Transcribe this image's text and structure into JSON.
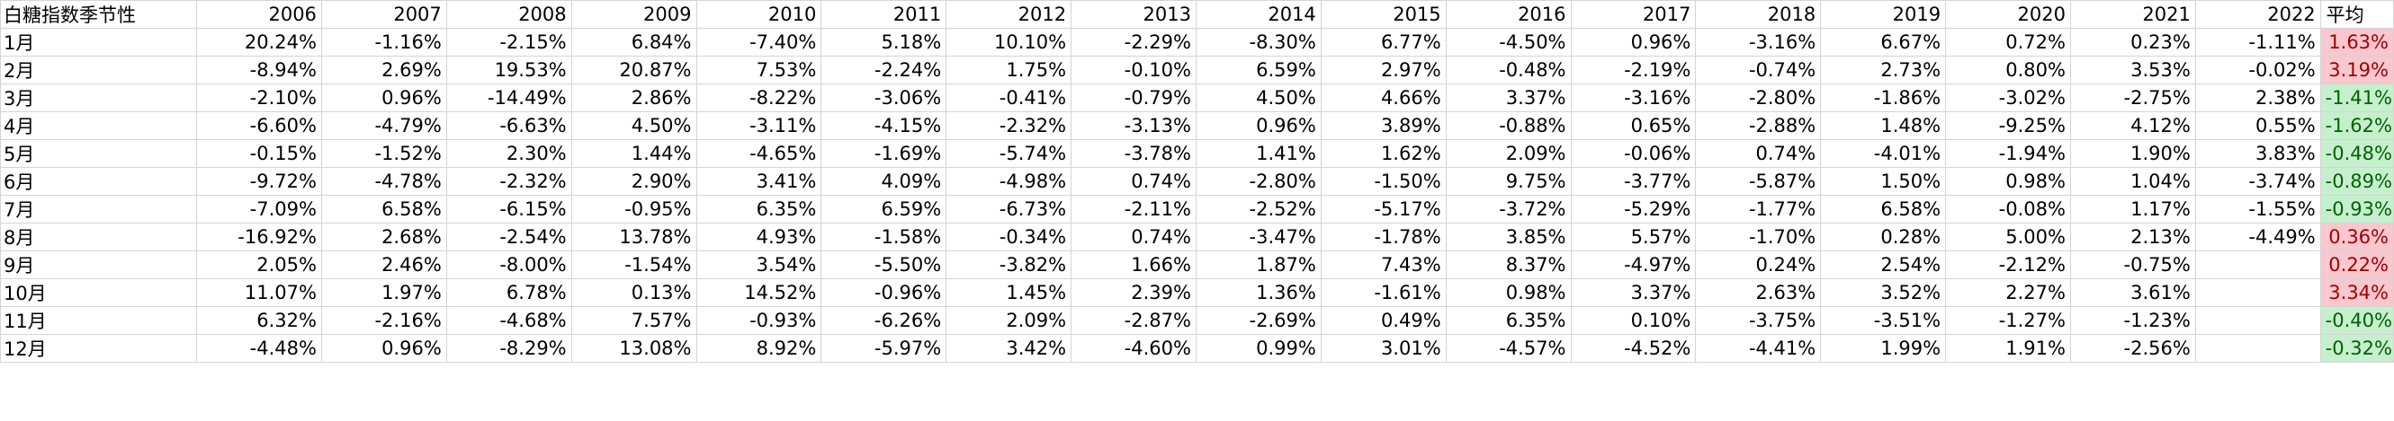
{
  "title": "白糖指数季节性",
  "average_label": "平均",
  "years": [
    "2006",
    "2007",
    "2008",
    "2009",
    "2010",
    "2011",
    "2012",
    "2013",
    "2014",
    "2015",
    "2016",
    "2017",
    "2018",
    "2019",
    "2020",
    "2021",
    "2022"
  ],
  "rows": [
    {
      "month": "1月",
      "values": [
        "20.24%",
        "-1.16%",
        "-2.15%",
        "6.84%",
        "-7.40%",
        "5.18%",
        "10.10%",
        "-2.29%",
        "-8.30%",
        "6.77%",
        "-4.50%",
        "0.96%",
        "-3.16%",
        "6.67%",
        "0.72%",
        "0.23%",
        "-1.11%"
      ],
      "avg": "1.63%",
      "avg_sign": "pos"
    },
    {
      "month": "2月",
      "values": [
        "-8.94%",
        "2.69%",
        "19.53%",
        "20.87%",
        "7.53%",
        "-2.24%",
        "1.75%",
        "-0.10%",
        "6.59%",
        "2.97%",
        "-0.48%",
        "-2.19%",
        "-0.74%",
        "2.73%",
        "0.80%",
        "3.53%",
        "-0.02%"
      ],
      "avg": "3.19%",
      "avg_sign": "pos"
    },
    {
      "month": "3月",
      "values": [
        "-2.10%",
        "0.96%",
        "-14.49%",
        "2.86%",
        "-8.22%",
        "-3.06%",
        "-0.41%",
        "-0.79%",
        "4.50%",
        "4.66%",
        "3.37%",
        "-3.16%",
        "-2.80%",
        "-1.86%",
        "-3.02%",
        "-2.75%",
        "2.38%"
      ],
      "avg": "-1.41%",
      "avg_sign": "neg"
    },
    {
      "month": "4月",
      "values": [
        "-6.60%",
        "-4.79%",
        "-6.63%",
        "4.50%",
        "-3.11%",
        "-4.15%",
        "-2.32%",
        "-3.13%",
        "0.96%",
        "3.89%",
        "-0.88%",
        "0.65%",
        "-2.88%",
        "1.48%",
        "-9.25%",
        "4.12%",
        "0.55%"
      ],
      "avg": "-1.62%",
      "avg_sign": "neg"
    },
    {
      "month": "5月",
      "values": [
        "-0.15%",
        "-1.52%",
        "2.30%",
        "1.44%",
        "-4.65%",
        "-1.69%",
        "-5.74%",
        "-3.78%",
        "1.41%",
        "1.62%",
        "2.09%",
        "-0.06%",
        "0.74%",
        "-4.01%",
        "-1.94%",
        "1.90%",
        "3.83%"
      ],
      "avg": "-0.48%",
      "avg_sign": "neg"
    },
    {
      "month": "6月",
      "values": [
        "-9.72%",
        "-4.78%",
        "-2.32%",
        "2.90%",
        "3.41%",
        "4.09%",
        "-4.98%",
        "0.74%",
        "-2.80%",
        "-1.50%",
        "9.75%",
        "-3.77%",
        "-5.87%",
        "1.50%",
        "0.98%",
        "1.04%",
        "-3.74%"
      ],
      "avg": "-0.89%",
      "avg_sign": "neg"
    },
    {
      "month": "7月",
      "values": [
        "-7.09%",
        "6.58%",
        "-6.15%",
        "-0.95%",
        "6.35%",
        "6.59%",
        "-6.73%",
        "-2.11%",
        "-2.52%",
        "-5.17%",
        "-3.72%",
        "-5.29%",
        "-1.77%",
        "6.58%",
        "-0.08%",
        "1.17%",
        "-1.55%"
      ],
      "avg": "-0.93%",
      "avg_sign": "neg"
    },
    {
      "month": "8月",
      "values": [
        "-16.92%",
        "2.68%",
        "-2.54%",
        "13.78%",
        "4.93%",
        "-1.58%",
        "-0.34%",
        "0.74%",
        "-3.47%",
        "-1.78%",
        "3.85%",
        "5.57%",
        "-1.70%",
        "0.28%",
        "5.00%",
        "2.13%",
        "-4.49%"
      ],
      "avg": "0.36%",
      "avg_sign": "pos"
    },
    {
      "month": "9月",
      "values": [
        "2.05%",
        "2.46%",
        "-8.00%",
        "-1.54%",
        "3.54%",
        "-5.50%",
        "-3.82%",
        "1.66%",
        "1.87%",
        "7.43%",
        "8.37%",
        "-4.97%",
        "0.24%",
        "2.54%",
        "-2.12%",
        "-0.75%",
        ""
      ],
      "avg": "0.22%",
      "avg_sign": "pos"
    },
    {
      "month": "10月",
      "values": [
        "11.07%",
        "1.97%",
        "6.78%",
        "0.13%",
        "14.52%",
        "-0.96%",
        "1.45%",
        "2.39%",
        "1.36%",
        "-1.61%",
        "0.98%",
        "3.37%",
        "2.63%",
        "3.52%",
        "2.27%",
        "3.61%",
        ""
      ],
      "avg": "3.34%",
      "avg_sign": "pos"
    },
    {
      "month": "11月",
      "values": [
        "6.32%",
        "-2.16%",
        "-4.68%",
        "7.57%",
        "-0.93%",
        "-6.26%",
        "2.09%",
        "-2.87%",
        "-2.69%",
        "0.49%",
        "6.35%",
        "0.10%",
        "-3.75%",
        "-3.51%",
        "-1.27%",
        "-1.23%",
        ""
      ],
      "avg": "-0.40%",
      "avg_sign": "neg"
    },
    {
      "month": "12月",
      "values": [
        "-4.48%",
        "0.96%",
        "-8.29%",
        "13.08%",
        "8.92%",
        "-5.97%",
        "3.42%",
        "-4.60%",
        "0.99%",
        "3.01%",
        "-4.57%",
        "-4.52%",
        "-4.41%",
        "1.99%",
        "1.91%",
        "-2.56%",
        ""
      ],
      "avg": "-0.32%",
      "avg_sign": "neg"
    }
  ],
  "colors": {
    "positive_fill": "#f9c7ce",
    "positive_text": "#9c0006",
    "negative_fill": "#c6efce",
    "negative_text": "#006100",
    "grid": "#d4d4d4"
  }
}
